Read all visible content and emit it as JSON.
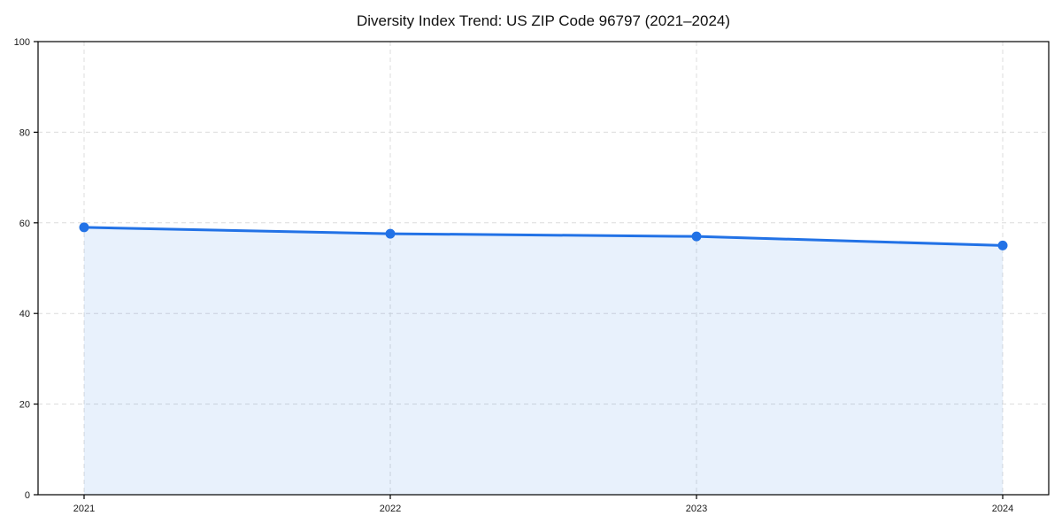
{
  "chart": {
    "title": "Diversity Index Trend: US ZIP Code 96797 (2021–2024)"
  },
  "chart_data": {
    "type": "line",
    "title": "Diversity Index Trend: US ZIP Code 96797 (2021–2024)",
    "x": [
      "2021",
      "2022",
      "2023",
      "2024"
    ],
    "series": [
      {
        "name": "Diversity Index",
        "values": [
          59.0,
          57.6,
          57.0,
          55.0
        ]
      }
    ],
    "xlabel": "",
    "ylabel": "",
    "ylim": [
      0,
      100
    ],
    "yticks": [
      0,
      20,
      40,
      60,
      80,
      100
    ],
    "grid": "dashed",
    "legend": "none",
    "area_fill": true,
    "style": {
      "line_color": "#2272e6",
      "marker_color": "#2272e6",
      "area_color": "#2272e6",
      "area_opacity": 0.1,
      "grid_color": "#dcdcdc",
      "spine_color": "#000000",
      "tick_label_color": "#1a1a1a",
      "background": "#ffffff"
    }
  }
}
